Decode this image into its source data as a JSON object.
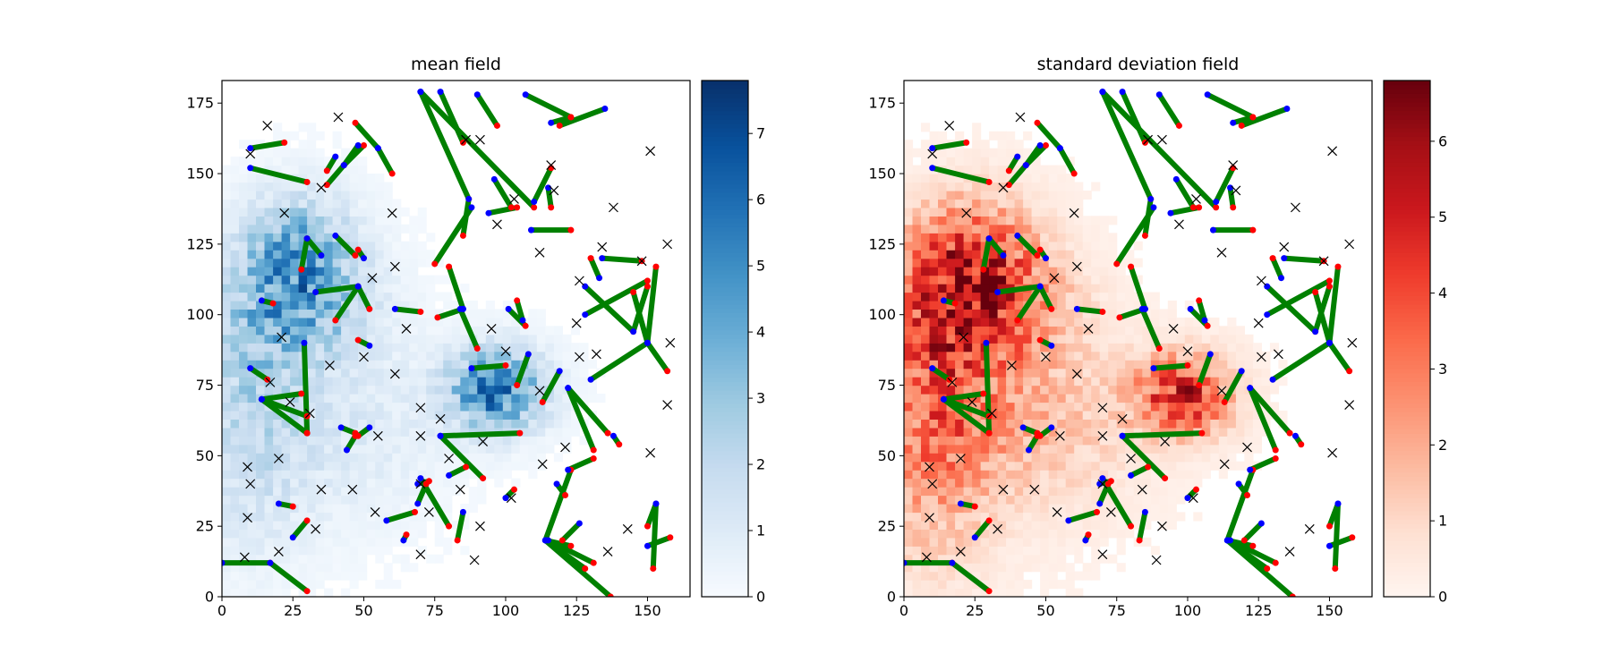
{
  "chart_data": [
    {
      "type": "heatmap",
      "title": "mean field",
      "xlabel": "",
      "ylabel": "",
      "xlim": [
        0,
        165
      ],
      "ylim": [
        0,
        183
      ],
      "x_ticks": [
        0,
        25,
        50,
        75,
        100,
        125,
        150
      ],
      "y_ticks": [
        0,
        25,
        50,
        75,
        100,
        125,
        150,
        175
      ],
      "colormap": "Blues",
      "colorbar": {
        "min": 0,
        "max": 7.8,
        "ticks": [
          0,
          1,
          2,
          3,
          4,
          5,
          6,
          7
        ]
      },
      "hotspots": [
        {
          "cx": 25,
          "cy": 120,
          "sx": 14,
          "sy": 15,
          "amp": 3.6
        },
        {
          "cx": 28,
          "cy": 100,
          "sx": 18,
          "sy": 14,
          "amp": 2.2
        },
        {
          "cx": 10,
          "cy": 85,
          "sx": 14,
          "sy": 20,
          "amp": 1.6
        },
        {
          "cx": 95,
          "cy": 72,
          "sx": 12,
          "sy": 10,
          "amp": 5.4
        },
        {
          "cx": 8,
          "cy": 45,
          "sx": 16,
          "sy": 25,
          "amp": 1.3
        },
        {
          "cx": 45,
          "cy": 58,
          "sx": 22,
          "sy": 22,
          "amp": 0.9
        }
      ]
    },
    {
      "type": "heatmap",
      "title": "standard deviation field",
      "xlabel": "",
      "ylabel": "",
      "xlim": [
        0,
        165
      ],
      "ylim": [
        0,
        183
      ],
      "x_ticks": [
        0,
        25,
        50,
        75,
        100,
        125,
        150
      ],
      "y_ticks": [
        0,
        25,
        50,
        75,
        100,
        125,
        150,
        175
      ],
      "colormap": "Reds",
      "colorbar": {
        "min": 0,
        "max": 6.8,
        "ticks": [
          0,
          1,
          2,
          3,
          4,
          5,
          6
        ]
      },
      "hotspots": [
        {
          "cx": 22,
          "cy": 118,
          "sx": 16,
          "sy": 16,
          "amp": 3.8
        },
        {
          "cx": 28,
          "cy": 100,
          "sx": 20,
          "sy": 15,
          "amp": 2.6
        },
        {
          "cx": 10,
          "cy": 80,
          "sx": 15,
          "sy": 22,
          "amp": 2.2
        },
        {
          "cx": 97,
          "cy": 70,
          "sx": 12,
          "sy": 10,
          "amp": 4.6
        },
        {
          "cx": 8,
          "cy": 45,
          "sx": 16,
          "sy": 28,
          "amp": 1.8
        },
        {
          "cx": 45,
          "cy": 60,
          "sx": 24,
          "sy": 22,
          "amp": 1.5
        }
      ]
    }
  ],
  "overlay": {
    "segments": [
      [
        [
          70,
          179
        ],
        [
          87,
          141
        ]
      ],
      [
        [
          77,
          179
        ],
        [
          85,
          161
        ]
      ],
      [
        [
          70,
          179
        ],
        [
          110,
          138
        ]
      ],
      [
        [
          55,
          159
        ],
        [
          60,
          150
        ]
      ],
      [
        [
          55,
          159
        ],
        [
          47,
          168
        ]
      ],
      [
        [
          43,
          153
        ],
        [
          50,
          160
        ]
      ],
      [
        [
          40,
          156
        ],
        [
          37,
          151
        ]
      ],
      [
        [
          48,
          160
        ],
        [
          43,
          153
        ]
      ],
      [
        [
          43,
          153
        ],
        [
          37,
          146
        ]
      ],
      [
        [
          10,
          159
        ],
        [
          22,
          161
        ]
      ],
      [
        [
          10,
          152
        ],
        [
          30,
          147
        ]
      ],
      [
        [
          35,
          121
        ],
        [
          30,
          127
        ]
      ],
      [
        [
          30,
          127
        ],
        [
          28,
          116
        ]
      ],
      [
        [
          33,
          108
        ],
        [
          48,
          110
        ]
      ],
      [
        [
          48,
          110
        ],
        [
          40,
          98
        ]
      ],
      [
        [
          48,
          110
        ],
        [
          52,
          102
        ]
      ],
      [
        [
          40,
          128
        ],
        [
          47,
          121
        ]
      ],
      [
        [
          50,
          120
        ],
        [
          48,
          123
        ]
      ],
      [
        [
          52,
          89
        ],
        [
          48,
          91
        ]
      ],
      [
        [
          61,
          102
        ],
        [
          70,
          101
        ]
      ],
      [
        [
          29,
          90
        ],
        [
          30,
          58
        ]
      ],
      [
        [
          14,
          70
        ],
        [
          30,
          64
        ]
      ],
      [
        [
          14,
          70
        ],
        [
          30,
          58
        ]
      ],
      [
        [
          14,
          70
        ],
        [
          28,
          72
        ]
      ],
      [
        [
          10,
          81
        ],
        [
          16,
          77
        ]
      ],
      [
        [
          14,
          105
        ],
        [
          18,
          104
        ]
      ],
      [
        [
          42,
          60
        ],
        [
          47,
          58
        ]
      ],
      [
        [
          52,
          60
        ],
        [
          48,
          57
        ]
      ],
      [
        [
          44,
          52
        ],
        [
          47,
          57
        ]
      ],
      [
        [
          20,
          33
        ],
        [
          25,
          32
        ]
      ],
      [
        [
          25,
          21
        ],
        [
          30,
          27
        ]
      ],
      [
        [
          0,
          12
        ],
        [
          17,
          12
        ]
      ],
      [
        [
          17,
          12
        ],
        [
          30,
          2
        ]
      ],
      [
        [
          58,
          27
        ],
        [
          68,
          30
        ]
      ],
      [
        [
          64,
          20
        ],
        [
          65,
          22
        ]
      ],
      [
        [
          70,
          42
        ],
        [
          80,
          25
        ]
      ],
      [
        [
          77,
          57
        ],
        [
          105,
          58
        ]
      ],
      [
        [
          77,
          57
        ],
        [
          92,
          42
        ]
      ],
      [
        [
          80,
          43
        ],
        [
          86,
          46
        ]
      ],
      [
        [
          69,
          40
        ],
        [
          73,
          41
        ]
      ],
      [
        [
          69,
          33
        ],
        [
          72,
          40
        ]
      ],
      [
        [
          90,
          178
        ],
        [
          97,
          167
        ]
      ],
      [
        [
          94,
          136
        ],
        [
          104,
          138
        ]
      ],
      [
        [
          88,
          138
        ],
        [
          75,
          118
        ]
      ],
      [
        [
          87,
          141
        ],
        [
          85,
          128
        ]
      ],
      [
        [
          96,
          148
        ],
        [
          102,
          138
        ]
      ],
      [
        [
          109,
          130
        ],
        [
          123,
          130
        ]
      ],
      [
        [
          110,
          140
        ],
        [
          116,
          152
        ]
      ],
      [
        [
          85,
          102
        ],
        [
          76,
          99
        ]
      ],
      [
        [
          85,
          102
        ],
        [
          80,
          117
        ]
      ],
      [
        [
          84,
          102
        ],
        [
          90,
          88
        ]
      ],
      [
        [
          88,
          81
        ],
        [
          100,
          82
        ]
      ],
      [
        [
          101,
          102
        ],
        [
          107,
          96
        ]
      ],
      [
        [
          106,
          98
        ],
        [
          104,
          105
        ]
      ],
      [
        [
          107,
          178
        ],
        [
          123,
          170
        ]
      ],
      [
        [
          116,
          168
        ],
        [
          123,
          170
        ]
      ],
      [
        [
          135,
          173
        ],
        [
          119,
          167
        ]
      ],
      [
        [
          115,
          145
        ],
        [
          116,
          138
        ]
      ],
      [
        [
          108,
          86
        ],
        [
          104,
          75
        ]
      ],
      [
        [
          122,
          74
        ],
        [
          136,
          58
        ]
      ],
      [
        [
          122,
          74
        ],
        [
          131,
          52
        ]
      ],
      [
        [
          119,
          80
        ],
        [
          113,
          69
        ]
      ],
      [
        [
          138,
          57
        ],
        [
          140,
          54
        ]
      ],
      [
        [
          128,
          110
        ],
        [
          145,
          94
        ]
      ],
      [
        [
          128,
          100
        ],
        [
          150,
          112
        ]
      ],
      [
        [
          145,
          94
        ],
        [
          150,
          110
        ]
      ],
      [
        [
          130,
          77
        ],
        [
          150,
          90
        ]
      ],
      [
        [
          150,
          90
        ],
        [
          157,
          80
        ]
      ],
      [
        [
          150,
          90
        ],
        [
          145,
          108
        ]
      ],
      [
        [
          150,
          90
        ],
        [
          153,
          117
        ]
      ],
      [
        [
          133,
          113
        ],
        [
          130,
          120
        ]
      ],
      [
        [
          134,
          120
        ],
        [
          148,
          119
        ]
      ],
      [
        [
          126,
          26
        ],
        [
          120,
          20
        ]
      ],
      [
        [
          114,
          20
        ],
        [
          123,
          45
        ]
      ],
      [
        [
          114,
          20
        ],
        [
          137,
          0
        ]
      ],
      [
        [
          114,
          20
        ],
        [
          123,
          18
        ]
      ],
      [
        [
          114,
          20
        ],
        [
          128,
          10
        ]
      ],
      [
        [
          115,
          20
        ],
        [
          131,
          12
        ]
      ],
      [
        [
          122,
          45
        ],
        [
          131,
          49
        ]
      ],
      [
        [
          118,
          40
        ],
        [
          121,
          36
        ]
      ],
      [
        [
          150,
          18
        ],
        [
          158,
          21
        ]
      ],
      [
        [
          153,
          33
        ],
        [
          152,
          10
        ]
      ],
      [
        [
          153,
          33
        ],
        [
          150,
          25
        ]
      ],
      [
        [
          85,
          30
        ],
        [
          83,
          20
        ]
      ],
      [
        [
          100,
          35
        ],
        [
          103,
          38
        ]
      ]
    ],
    "x_markers": [
      [
        16,
        167
      ],
      [
        41,
        170
      ],
      [
        10,
        157
      ],
      [
        35,
        145
      ],
      [
        22,
        136
      ],
      [
        60,
        136
      ],
      [
        86,
        162
      ],
      [
        91,
        162
      ],
      [
        116,
        153
      ],
      [
        97,
        132
      ],
      [
        103,
        141
      ],
      [
        117,
        144
      ],
      [
        138,
        138
      ],
      [
        151,
        158
      ],
      [
        157,
        125
      ],
      [
        112,
        122
      ],
      [
        148,
        119
      ],
      [
        53,
        113
      ],
      [
        61,
        117
      ],
      [
        126,
        112
      ],
      [
        125,
        97
      ],
      [
        95,
        95
      ],
      [
        100,
        87
      ],
      [
        65,
        95
      ],
      [
        50,
        85
      ],
      [
        61,
        79
      ],
      [
        38,
        82
      ],
      [
        17,
        76
      ],
      [
        21,
        92
      ],
      [
        31,
        65
      ],
      [
        9,
        46
      ],
      [
        10,
        40
      ],
      [
        20,
        49
      ],
      [
        9,
        28
      ],
      [
        24,
        69
      ],
      [
        35,
        38
      ],
      [
        46,
        38
      ],
      [
        55,
        57
      ],
      [
        70,
        57
      ],
      [
        80,
        49
      ],
      [
        84,
        38
      ],
      [
        92,
        55
      ],
      [
        70,
        67
      ],
      [
        70,
        40
      ],
      [
        77,
        63
      ],
      [
        91,
        25
      ],
      [
        89,
        13
      ],
      [
        70,
        15
      ],
      [
        54,
        30
      ],
      [
        73,
        30
      ],
      [
        102,
        35
      ],
      [
        113,
        47
      ],
      [
        121,
        53
      ],
      [
        126,
        85
      ],
      [
        112,
        73
      ],
      [
        132,
        86
      ],
      [
        134,
        124
      ],
      [
        151,
        51
      ],
      [
        157,
        68
      ],
      [
        158,
        90
      ],
      [
        143,
        24
      ],
      [
        136,
        16
      ],
      [
        8,
        14
      ],
      [
        20,
        16
      ],
      [
        33,
        24
      ]
    ]
  }
}
